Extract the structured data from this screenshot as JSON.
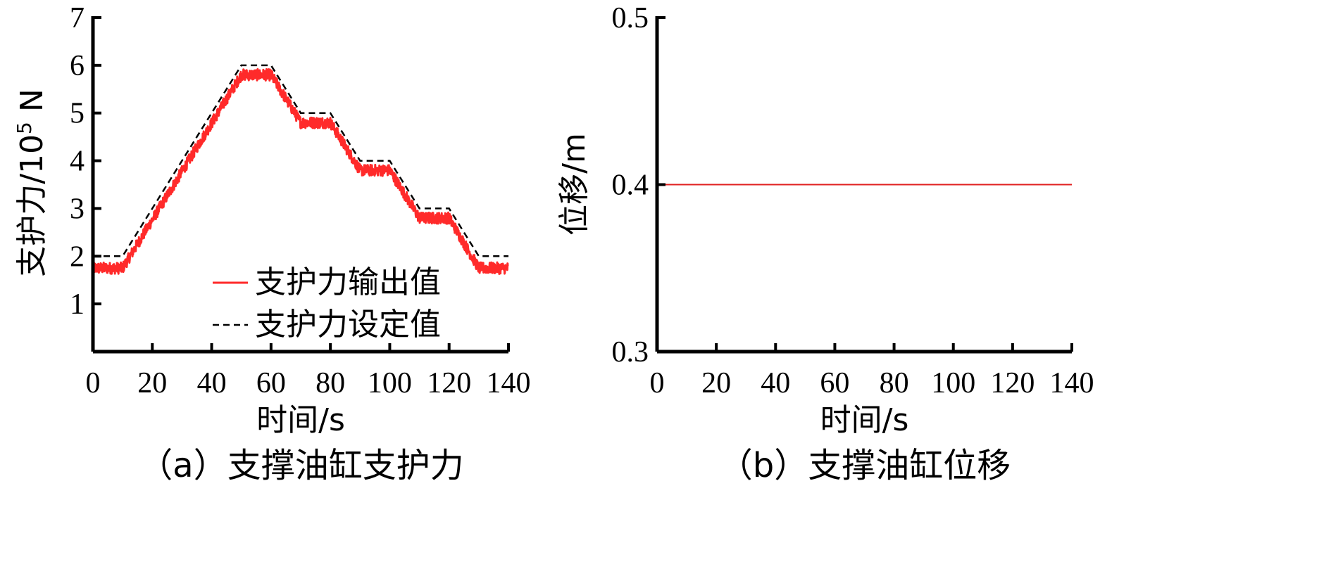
{
  "chart_data": [
    {
      "type": "line",
      "panel": "a",
      "caption": "（a）支撑油缸支护力",
      "xlabel": "时间/s",
      "ylabel_main": "支护力/10",
      "ylabel_sup": "5",
      "ylabel_unit": " N",
      "xlim": [
        0,
        140
      ],
      "ylim": [
        0,
        7
      ],
      "xticks": [
        0,
        20,
        40,
        60,
        80,
        100,
        120,
        140
      ],
      "yticks": [
        1,
        2,
        3,
        4,
        5,
        6,
        7
      ],
      "legend_position": "bottom-center",
      "series": [
        {
          "name": "支护力输出值",
          "color": "#ff2a2a",
          "style": "solid-noisy",
          "noise_amplitude": 0.12,
          "x": [
            0,
            10,
            50,
            60,
            70,
            80,
            90,
            100,
            110,
            120,
            130,
            140
          ],
          "y": [
            1.75,
            1.75,
            5.8,
            5.8,
            4.8,
            4.8,
            3.8,
            3.8,
            2.8,
            2.8,
            1.75,
            1.75
          ]
        },
        {
          "name": "支护力设定值",
          "color": "#000000",
          "style": "dashed",
          "x": [
            0,
            10,
            50,
            60,
            70,
            80,
            90,
            100,
            110,
            120,
            130,
            140
          ],
          "y": [
            2,
            2,
            6,
            6,
            5,
            5,
            4,
            4,
            3,
            3,
            2,
            2
          ]
        }
      ]
    },
    {
      "type": "line",
      "panel": "b",
      "caption": "（b）支撑油缸位移",
      "xlabel": "时间/s",
      "ylabel": "位移/m",
      "xlim": [
        0,
        140
      ],
      "ylim": [
        0.3,
        0.5
      ],
      "xticks": [
        0,
        20,
        40,
        60,
        80,
        100,
        120,
        140
      ],
      "yticks": [
        0.3,
        0.4,
        0.5
      ],
      "series": [
        {
          "color": "#e02020",
          "x": [
            0,
            140
          ],
          "y": [
            0.4,
            0.4
          ]
        }
      ]
    }
  ]
}
